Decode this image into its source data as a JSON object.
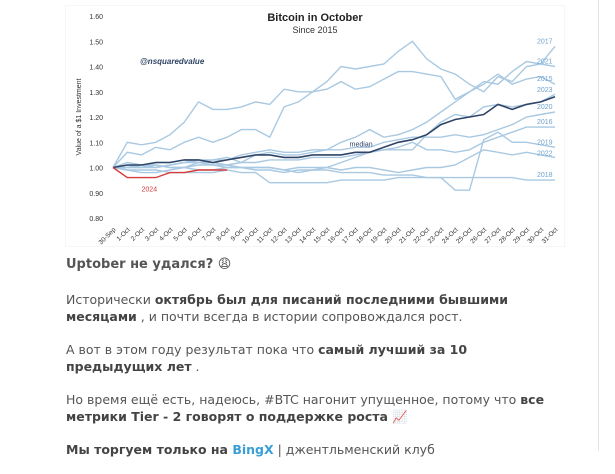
{
  "chart_data": {
    "type": "line",
    "title": "Bitcoin in October",
    "subtitle": "Since 2015",
    "y_label": "Value of a $1 Investment",
    "annotations": [
      "@nsquaredvalue"
    ],
    "categories": [
      "30-Sep",
      "1-Oct",
      "2-Oct",
      "3-Oct",
      "4-Oct",
      "5-Oct",
      "6-Oct",
      "7-Oct",
      "8-Oct",
      "9-Oct",
      "10-Oct",
      "11-Oct",
      "12-Oct",
      "13-Oct",
      "14-Oct",
      "15-Oct",
      "16-Oct",
      "17-Oct",
      "18-Oct",
      "19-Oct",
      "20-Oct",
      "21-Oct",
      "22-Oct",
      "23-Oct",
      "24-Oct",
      "25-Oct",
      "26-Oct",
      "27-Oct",
      "28-Oct",
      "29-Oct",
      "30-Oct",
      "31-Oct"
    ],
    "ylim": [
      0.8,
      1.6
    ],
    "yticks": [
      {
        "value": 0.8,
        "label": "0.80"
      },
      {
        "value": 0.9,
        "label": "0.90"
      },
      {
        "value": 1.0,
        "label": "1.00"
      },
      {
        "value": 1.1,
        "label": "1.10"
      },
      {
        "value": 1.2,
        "label": "1.20"
      },
      {
        "value": 1.3,
        "label": "1.30"
      },
      {
        "value": 1.4,
        "label": "1.40"
      },
      {
        "value": 1.5,
        "label": "1.50"
      },
      {
        "value": 1.6,
        "label": "1.60"
      }
    ],
    "series": [
      {
        "name": "2017",
        "color": "#a9c9e2",
        "values": [
          1.0,
          1.1,
          1.09,
          1.1,
          1.13,
          1.18,
          1.26,
          1.23,
          1.23,
          1.24,
          1.26,
          1.25,
          1.31,
          1.3,
          1.3,
          1.34,
          1.4,
          1.39,
          1.4,
          1.41,
          1.46,
          1.5,
          1.43,
          1.39,
          1.37,
          1.33,
          1.3,
          1.36,
          1.34,
          1.4,
          1.41,
          1.48
        ]
      },
      {
        "name": "2021",
        "color": "#a9c9e2",
        "values": [
          1.0,
          1.06,
          1.05,
          1.08,
          1.07,
          1.1,
          1.12,
          1.1,
          1.12,
          1.15,
          1.15,
          1.12,
          1.24,
          1.26,
          1.3,
          1.31,
          1.34,
          1.31,
          1.32,
          1.35,
          1.38,
          1.38,
          1.37,
          1.36,
          1.27,
          1.3,
          1.34,
          1.33,
          1.38,
          1.42,
          1.41,
          1.4
        ]
      },
      {
        "name": "2015",
        "color": "#a9c9e2",
        "values": [
          1.0,
          1.0,
          1.01,
          1.0,
          1.01,
          1.02,
          1.02,
          1.03,
          1.04,
          1.02,
          1.05,
          1.06,
          1.05,
          1.05,
          1.06,
          1.07,
          1.1,
          1.12,
          1.15,
          1.12,
          1.13,
          1.15,
          1.18,
          1.22,
          1.26,
          1.3,
          1.33,
          1.37,
          1.33,
          1.35,
          1.36,
          1.33
        ]
      },
      {
        "name": "2023",
        "color": "#a9c9e2",
        "values": [
          1.0,
          1.02,
          1.01,
          1.01,
          1.0,
          1.0,
          1.02,
          1.01,
          1.0,
          1.0,
          0.99,
          0.99,
          0.98,
          0.99,
          0.99,
          1.0,
          1.02,
          1.04,
          1.06,
          1.07,
          1.07,
          1.07,
          1.13,
          1.18,
          1.21,
          1.2,
          1.24,
          1.25,
          1.24,
          1.25,
          1.26,
          1.29
        ]
      },
      {
        "name": "2020",
        "color": "#a9c9e2",
        "values": [
          1.0,
          1.01,
          1.0,
          1.0,
          1.01,
          1.02,
          1.03,
          1.03,
          1.03,
          1.05,
          1.06,
          1.07,
          1.06,
          1.06,
          1.07,
          1.07,
          1.07,
          1.08,
          1.08,
          1.1,
          1.11,
          1.12,
          1.12,
          1.12,
          1.13,
          1.12,
          1.13,
          1.15,
          1.17,
          1.2,
          1.21,
          1.22
        ]
      },
      {
        "name": "2016",
        "color": "#a9c9e2",
        "values": [
          1.0,
          1.0,
          1.0,
          1.01,
          1.0,
          1.0,
          1.01,
          1.01,
          1.01,
          1.02,
          1.02,
          1.03,
          1.03,
          1.03,
          1.04,
          1.04,
          1.04,
          1.05,
          1.06,
          1.07,
          1.08,
          1.1,
          1.07,
          1.07,
          1.06,
          1.07,
          1.1,
          1.12,
          1.14,
          1.16,
          1.16,
          1.16
        ]
      },
      {
        "name": "2019",
        "color": "#a9c9e2",
        "values": [
          1.0,
          0.99,
          0.98,
          0.98,
          0.99,
          1.0,
          0.99,
          0.99,
          1.0,
          1.0,
          1.0,
          1.0,
          0.99,
          0.98,
          0.99,
          0.99,
          0.98,
          0.98,
          0.98,
          0.97,
          0.97,
          0.97,
          0.96,
          0.96,
          0.91,
          0.91,
          1.11,
          1.14,
          1.1,
          1.1,
          1.09,
          1.08
        ]
      },
      {
        "name": "2022",
        "color": "#a9c9e2",
        "values": [
          1.0,
          1.0,
          1.0,
          1.02,
          1.02,
          1.03,
          1.02,
          1.02,
          1.01,
          1.0,
          1.0,
          1.0,
          0.99,
          1.0,
          1.0,
          1.0,
          0.99,
          1.0,
          1.0,
          0.99,
          0.98,
          0.99,
          1.0,
          1.0,
          1.01,
          1.04,
          1.07,
          1.06,
          1.05,
          1.06,
          1.05,
          1.04
        ]
      },
      {
        "name": "2018",
        "color": "#a9c9e2",
        "values": [
          1.0,
          0.99,
          0.99,
          0.99,
          0.98,
          0.98,
          0.98,
          0.98,
          0.99,
          0.98,
          0.98,
          0.94,
          0.94,
          0.94,
          0.94,
          0.94,
          0.95,
          0.95,
          0.95,
          0.95,
          0.96,
          0.96,
          0.96,
          0.96,
          0.96,
          0.96,
          0.96,
          0.96,
          0.96,
          0.95,
          0.95,
          0.95
        ]
      },
      {
        "name": "median",
        "color": "#2f4466",
        "values": [
          1.0,
          1.01,
          1.01,
          1.02,
          1.02,
          1.03,
          1.03,
          1.02,
          1.03,
          1.04,
          1.05,
          1.05,
          1.04,
          1.04,
          1.05,
          1.05,
          1.05,
          1.06,
          1.06,
          1.08,
          1.1,
          1.11,
          1.13,
          1.17,
          1.19,
          1.2,
          1.21,
          1.25,
          1.23,
          1.25,
          1.26,
          1.28
        ]
      },
      {
        "name": "2024",
        "color": "#d63a3a",
        "values": [
          1.0,
          0.96,
          0.96,
          0.96,
          0.98,
          0.98,
          0.99,
          0.99,
          0.99,
          null,
          null,
          null,
          null,
          null,
          null,
          null,
          null,
          null,
          null,
          null,
          null,
          null,
          null,
          null,
          null,
          null,
          null,
          null,
          null,
          null,
          null,
          null
        ]
      }
    ]
  },
  "post": {
    "heading": "Uptober не удался? 😩",
    "paragraphs": [
      {
        "segments": [
          {
            "text": "Исторически ",
            "bold": false
          },
          {
            "text": "октябрь был для писаний последними бывшими месяцами",
            "bold": true
          },
          {
            "text": " , и почти всегда в истории сопровождался рост.",
            "bold": false
          }
        ]
      },
      {
        "segments": [
          {
            "text": "А вот в этом году результат пока что ",
            "bold": false
          },
          {
            "text": "самый лучший за 10 предыдущих лет",
            "bold": true
          },
          {
            "text": " .",
            "bold": false
          }
        ]
      },
      {
        "segments": [
          {
            "text": "Но время ещё есть, надеюсь, #BTC нагонит упущенное, потому что ",
            "bold": false
          },
          {
            "text": "все метрики Tier - 2 говорят о поддержке роста",
            "bold": true
          },
          {
            "text": " 📈",
            "bold": false
          }
        ]
      },
      {
        "segments": [
          {
            "text": "Мы торгуем только на ",
            "bold": true
          },
          {
            "text": "BingX",
            "bold": true,
            "link": true
          },
          {
            "text": " | джентльменский клуб",
            "bold": false
          }
        ]
      }
    ]
  }
}
